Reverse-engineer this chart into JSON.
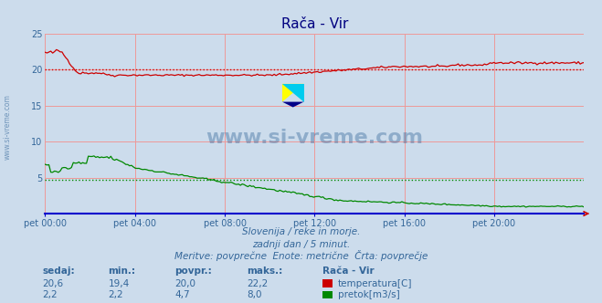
{
  "title": "Rača - Vir",
  "background_color": "#ccdcec",
  "plot_bg_color": "#ccdcec",
  "grid_color": "#ee9999",
  "x_labels": [
    "pet 00:00",
    "pet 04:00",
    "pet 08:00",
    "pet 12:00",
    "pet 16:00",
    "pet 20:00"
  ],
  "x_ticks_norm": [
    0.0,
    0.1667,
    0.3333,
    0.5,
    0.6667,
    0.8333
  ],
  "y_min": 0,
  "y_max": 25,
  "y_ticks": [
    5,
    10,
    15,
    20,
    25
  ],
  "temp_color": "#cc0000",
  "flow_color": "#008800",
  "avg_temp": 20.0,
  "avg_flow": 4.7,
  "subtitle1": "Slovenija / reke in morje.",
  "subtitle2": "zadnji dan / 5 minut.",
  "subtitle3": "Meritve: povprečne  Enote: metrične  Črta: povprečje",
  "legend_title": "Rača - Vir",
  "label_temp": "temperatura[C]",
  "label_flow": "pretok[m3/s]",
  "watermark": "www.si-vreme.com",
  "side_watermark": "www.si-vreme.com",
  "axis_label_color": "#336699",
  "text_color": "#336699",
  "axis_line_color": "#0000cc",
  "arrow_color": "#cc0000",
  "headers": [
    "sedaj:",
    "min.:",
    "povpr.:",
    "maks.:"
  ],
  "row1_vals": [
    "20,6",
    "19,4",
    "20,0",
    "22,2"
  ],
  "row2_vals": [
    "2,2",
    "2,2",
    "4,7",
    "8,0"
  ]
}
